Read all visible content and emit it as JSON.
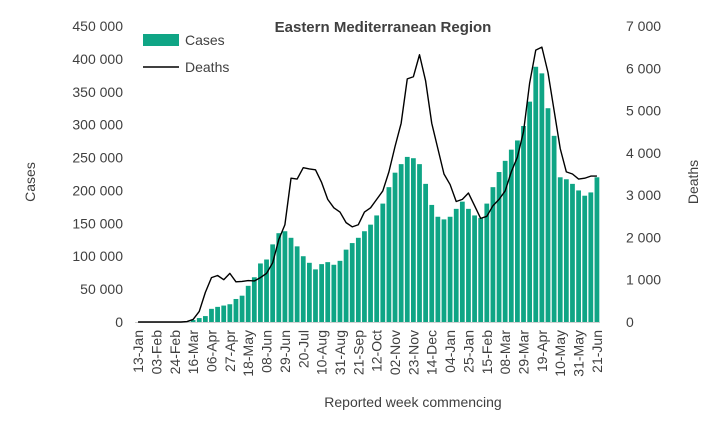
{
  "chart_data": {
    "type": "bar",
    "title": "Eastern Mediterranean Region",
    "xlabel": "Reported week commencing",
    "ylabel": "Cases",
    "y2label": "Deaths",
    "ylim": [
      0,
      450000
    ],
    "y2lim": [
      0,
      7000
    ],
    "yticks": [
      "0",
      "50 000",
      "100 000",
      "150 000",
      "200 000",
      "250 000",
      "300 000",
      "350 000",
      "400 000",
      "450 000"
    ],
    "y2ticks": [
      "0",
      "1 000",
      "2 000",
      "3 000",
      "4 000",
      "5 000",
      "6 000",
      "7 000"
    ],
    "tick_labels": [
      "13-Jan",
      "03-Feb",
      "24-Feb",
      "16-Mar",
      "06-Apr",
      "27-Apr",
      "18-May",
      "08-Jun",
      "29-Jun",
      "20-Jul",
      "10-Aug",
      "31-Aug",
      "21-Sep",
      "12-Oct",
      "02-Nov",
      "23-Nov",
      "14-Dec",
      "04-Jan",
      "25-Jan",
      "15-Feb",
      "08-Mar",
      "29-Mar",
      "19-Apr",
      "10-May",
      "31-May",
      "21-Jun"
    ],
    "legend": [
      "Cases",
      "Deaths"
    ],
    "legend_position": "top-left",
    "colors": {
      "cases": "#0fa585",
      "deaths": "#000000"
    },
    "grid": false,
    "series": [
      {
        "name": "Cases",
        "kind": "bar",
        "values": [
          0,
          0,
          0,
          0,
          0,
          0,
          0,
          0,
          500,
          3000,
          6000,
          9000,
          20000,
          23000,
          25000,
          27000,
          35000,
          40000,
          55000,
          68000,
          89000,
          95000,
          118000,
          135000,
          138000,
          128000,
          115000,
          100000,
          90000,
          80000,
          88000,
          91000,
          87000,
          93000,
          110000,
          120000,
          128000,
          138000,
          148000,
          162000,
          180000,
          205000,
          227000,
          240000,
          251000,
          249000,
          240000,
          210000,
          178000,
          160000,
          156000,
          160000,
          172000,
          183000,
          172000,
          162000,
          158000,
          180000,
          205000,
          228000,
          245000,
          262000,
          276000,
          298000,
          335000,
          388000,
          378000,
          325000,
          283000,
          220000,
          217000,
          210000,
          200000,
          192000,
          197000,
          220000
        ]
      },
      {
        "name": "Deaths",
        "kind": "line",
        "axis": "right",
        "values": [
          0,
          0,
          0,
          0,
          0,
          0,
          0,
          0,
          10,
          60,
          250,
          700,
          1050,
          1100,
          1000,
          1150,
          950,
          960,
          980,
          970,
          1050,
          1150,
          1400,
          1950,
          2300,
          3400,
          3380,
          3650,
          3620,
          3600,
          3300,
          2900,
          2700,
          2600,
          2350,
          2250,
          2300,
          2600,
          2700,
          2900,
          3100,
          3550,
          4150,
          4700,
          5750,
          5800,
          6320,
          5700,
          4700,
          4100,
          3500,
          3250,
          2850,
          2900,
          3050,
          2750,
          2450,
          2500,
          2750,
          2900,
          3100,
          3550,
          3900,
          4500,
          5650,
          6430,
          6500,
          5900,
          5000,
          4100,
          3550,
          3500,
          3380,
          3400,
          3450,
          3450
        ]
      }
    ]
  }
}
